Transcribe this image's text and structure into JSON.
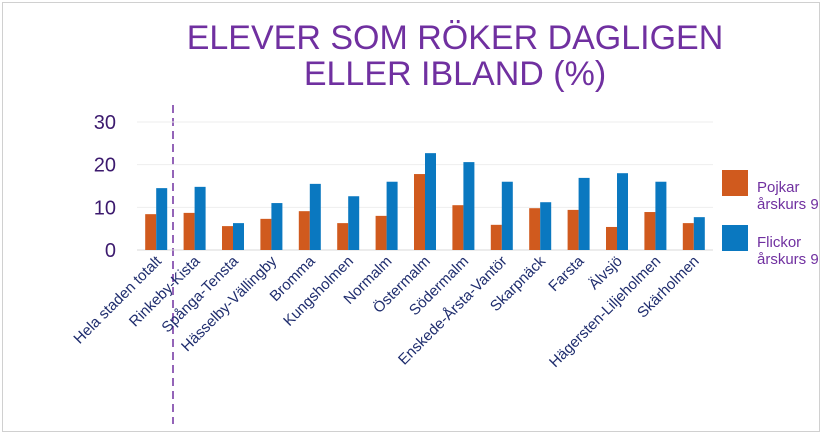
{
  "chart_data": {
    "type": "bar",
    "title": "ELEVER SOM RÖKER DAGLIGEN ELLER IBLAND (%)",
    "categories": [
      "Hela staden totalt",
      "Rinkeby-Kista",
      "Spånga-Tensta",
      "Hässelby-Vällingby",
      "Bromma",
      "Kungsholmen",
      "Normalm",
      "Östermalm",
      "Södermalm",
      "Enskede-Årsta-Vantör",
      "Skarpnäck",
      "Farsta",
      "Älvsjö",
      "Hägersten-Liljeholmen",
      "Skärholmen"
    ],
    "series": [
      {
        "name": "Pojkar årskurs 9",
        "color": "#d05a1e",
        "values": [
          8.4,
          8.7,
          5.6,
          7.3,
          9.1,
          6.3,
          8,
          17.8,
          10.5,
          5.9,
          9.8,
          9.4,
          5.4,
          8.9,
          6.3
        ]
      },
      {
        "name": "Flickor årskurs 9",
        "color": "#0a78c0",
        "values": [
          14.5,
          14.8,
          6.3,
          11,
          15.5,
          12.6,
          16,
          22.7,
          20.6,
          16,
          11.2,
          16.9,
          18,
          16,
          7.7
        ]
      }
    ],
    "ylim": [
      0,
      30
    ],
    "yticks": [
      0,
      10,
      20,
      30
    ],
    "grid": true
  }
}
